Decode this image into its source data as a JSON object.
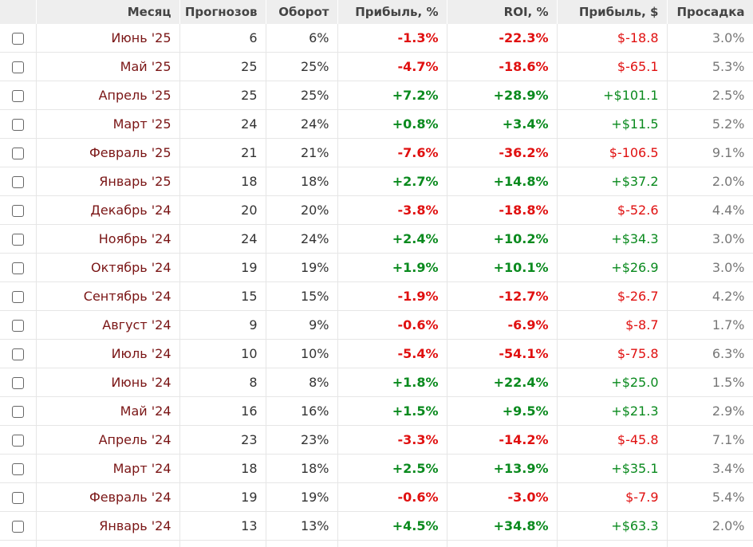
{
  "columns": {
    "month": "Месяц",
    "forecasts": "Прогнозов",
    "turnover": "Оборот",
    "profit_pct": "Прибыль, %",
    "roi": "ROI, %",
    "profit_usd": "Прибыль, $",
    "drawdown": "Просадка"
  },
  "colors": {
    "positive": "#0a8a1e",
    "negative": "#e01010",
    "month_text": "#7a1515"
  },
  "rows": [
    {
      "month": "Июнь '25",
      "forecasts": "6",
      "turnover": "6%",
      "profit_pct": "-1.3%",
      "roi": "-22.3%",
      "profit_usd": "$-18.8",
      "drawdown": "3.0%",
      "sign": "neg"
    },
    {
      "month": "Май '25",
      "forecasts": "25",
      "turnover": "25%",
      "profit_pct": "-4.7%",
      "roi": "-18.6%",
      "profit_usd": "$-65.1",
      "drawdown": "5.3%",
      "sign": "neg"
    },
    {
      "month": "Апрель '25",
      "forecasts": "25",
      "turnover": "25%",
      "profit_pct": "+7.2%",
      "roi": "+28.9%",
      "profit_usd": "+$101.1",
      "drawdown": "2.5%",
      "sign": "pos"
    },
    {
      "month": "Март '25",
      "forecasts": "24",
      "turnover": "24%",
      "profit_pct": "+0.8%",
      "roi": "+3.4%",
      "profit_usd": "+$11.5",
      "drawdown": "5.2%",
      "sign": "pos"
    },
    {
      "month": "Февраль '25",
      "forecasts": "21",
      "turnover": "21%",
      "profit_pct": "-7.6%",
      "roi": "-36.2%",
      "profit_usd": "$-106.5",
      "drawdown": "9.1%",
      "sign": "neg"
    },
    {
      "month": "Январь '25",
      "forecasts": "18",
      "turnover": "18%",
      "profit_pct": "+2.7%",
      "roi": "+14.8%",
      "profit_usd": "+$37.2",
      "drawdown": "2.0%",
      "sign": "pos"
    },
    {
      "month": "Декабрь '24",
      "forecasts": "20",
      "turnover": "20%",
      "profit_pct": "-3.8%",
      "roi": "-18.8%",
      "profit_usd": "$-52.6",
      "drawdown": "4.4%",
      "sign": "neg"
    },
    {
      "month": "Ноябрь '24",
      "forecasts": "24",
      "turnover": "24%",
      "profit_pct": "+2.4%",
      "roi": "+10.2%",
      "profit_usd": "+$34.3",
      "drawdown": "3.0%",
      "sign": "pos"
    },
    {
      "month": "Октябрь '24",
      "forecasts": "19",
      "turnover": "19%",
      "profit_pct": "+1.9%",
      "roi": "+10.1%",
      "profit_usd": "+$26.9",
      "drawdown": "3.0%",
      "sign": "pos"
    },
    {
      "month": "Сентябрь '24",
      "forecasts": "15",
      "turnover": "15%",
      "profit_pct": "-1.9%",
      "roi": "-12.7%",
      "profit_usd": "$-26.7",
      "drawdown": "4.2%",
      "sign": "neg"
    },
    {
      "month": "Август '24",
      "forecasts": "9",
      "turnover": "9%",
      "profit_pct": "-0.6%",
      "roi": "-6.9%",
      "profit_usd": "$-8.7",
      "drawdown": "1.7%",
      "sign": "neg"
    },
    {
      "month": "Июль '24",
      "forecasts": "10",
      "turnover": "10%",
      "profit_pct": "-5.4%",
      "roi": "-54.1%",
      "profit_usd": "$-75.8",
      "drawdown": "6.3%",
      "sign": "neg"
    },
    {
      "month": "Июнь '24",
      "forecasts": "8",
      "turnover": "8%",
      "profit_pct": "+1.8%",
      "roi": "+22.4%",
      "profit_usd": "+$25.0",
      "drawdown": "1.5%",
      "sign": "pos"
    },
    {
      "month": "Май '24",
      "forecasts": "16",
      "turnover": "16%",
      "profit_pct": "+1.5%",
      "roi": "+9.5%",
      "profit_usd": "+$21.3",
      "drawdown": "2.9%",
      "sign": "pos"
    },
    {
      "month": "Апрель '24",
      "forecasts": "23",
      "turnover": "23%",
      "profit_pct": "-3.3%",
      "roi": "-14.2%",
      "profit_usd": "$-45.8",
      "drawdown": "7.1%",
      "sign": "neg"
    },
    {
      "month": "Март '24",
      "forecasts": "18",
      "turnover": "18%",
      "profit_pct": "+2.5%",
      "roi": "+13.9%",
      "profit_usd": "+$35.1",
      "drawdown": "3.4%",
      "sign": "pos"
    },
    {
      "month": "Февраль '24",
      "forecasts": "19",
      "turnover": "19%",
      "profit_pct": "-0.6%",
      "roi": "-3.0%",
      "profit_usd": "$-7.9",
      "drawdown": "5.4%",
      "sign": "neg"
    },
    {
      "month": "Январь '24",
      "forecasts": "13",
      "turnover": "13%",
      "profit_pct": "+4.5%",
      "roi": "+34.8%",
      "profit_usd": "+$63.3",
      "drawdown": "2.0%",
      "sign": "pos"
    }
  ]
}
